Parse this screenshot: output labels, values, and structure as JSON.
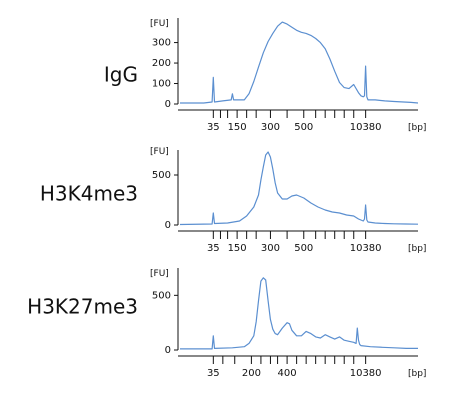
{
  "chart_data": [
    {
      "type": "line",
      "title": "IgG",
      "ylabel": "[FU]",
      "xlabel": "[bp]",
      "ylim": [
        0,
        420
      ],
      "yticks": [
        0,
        100,
        200,
        300
      ],
      "xlim": [
        0,
        100
      ],
      "x_tick_labels": [
        {
          "label": "35",
          "x": 14
        },
        {
          "label": "150",
          "x": 24
        },
        {
          "label": "300",
          "x": 38
        },
        {
          "label": "500",
          "x": 52
        },
        {
          "label": "10380",
          "x": 78
        }
      ],
      "x_minor_ticks": [
        14,
        17,
        20,
        24,
        28,
        32,
        38,
        45,
        52,
        57,
        61,
        65,
        69,
        73,
        78
      ],
      "series": [
        {
          "x": [
            0,
            10,
            13.5,
            14,
            14.5,
            18,
            21.5,
            22,
            22.5,
            27,
            29,
            31,
            33,
            35,
            37,
            39,
            41,
            42,
            43,
            44,
            45,
            47,
            49,
            51,
            53,
            55,
            57,
            59,
            61,
            63,
            65,
            67,
            69,
            71,
            73,
            75,
            76,
            77,
            77.5,
            78,
            78.5,
            79,
            82,
            86,
            90,
            94,
            97,
            100
          ],
          "y": [
            5,
            5,
            10,
            130,
            10,
            15,
            20,
            50,
            20,
            20,
            50,
            110,
            180,
            250,
            305,
            345,
            380,
            390,
            400,
            395,
            390,
            375,
            360,
            350,
            345,
            335,
            320,
            300,
            270,
            220,
            160,
            105,
            80,
            75,
            95,
            55,
            40,
            35,
            40,
            185,
            35,
            20,
            20,
            15,
            12,
            10,
            8,
            5
          ]
        }
      ]
    },
    {
      "type": "line",
      "title": "H3K4me3",
      "ylabel": "[FU]",
      "xlabel": "[bp]",
      "ylim": [
        0,
        750
      ],
      "yticks": [
        0,
        500
      ],
      "xlim": [
        0,
        100
      ],
      "x_tick_labels": [
        {
          "label": "35",
          "x": 14
        },
        {
          "label": "150",
          "x": 24
        },
        {
          "label": "300",
          "x": 38
        },
        {
          "label": "500",
          "x": 52
        },
        {
          "label": "10380",
          "x": 78
        }
      ],
      "x_minor_ticks": [
        14,
        17,
        20,
        24,
        28,
        32,
        38,
        45,
        52,
        57,
        61,
        65,
        69,
        73,
        78
      ],
      "series": [
        {
          "x": [
            0,
            13.5,
            14,
            14.5,
            20,
            25,
            28,
            31,
            33,
            34,
            35,
            36,
            37,
            38,
            39,
            40,
            41,
            43,
            45,
            47,
            49,
            52,
            55,
            58,
            61,
            64,
            67,
            70,
            73,
            75,
            77,
            77.5,
            78,
            78.5,
            79,
            82,
            86,
            90,
            95,
            100
          ],
          "y": [
            5,
            10,
            120,
            15,
            20,
            40,
            90,
            180,
            300,
            450,
            580,
            700,
            730,
            680,
            560,
            420,
            320,
            260,
            260,
            290,
            300,
            270,
            220,
            180,
            150,
            130,
            120,
            100,
            90,
            60,
            40,
            60,
            200,
            50,
            30,
            20,
            15,
            12,
            10,
            8
          ]
        }
      ]
    },
    {
      "type": "line",
      "title": "H3K27me3",
      "ylabel": "[FU]",
      "xlabel": "[bp]",
      "ylim": [
        0,
        750
      ],
      "yticks": [
        0,
        500
      ],
      "xlim": [
        0,
        100
      ],
      "x_tick_labels": [
        {
          "label": "35",
          "x": 14
        },
        {
          "label": "200",
          "x": 30
        },
        {
          "label": "400",
          "x": 45
        },
        {
          "label": "10380",
          "x": 78
        }
      ],
      "x_minor_ticks": [
        14,
        18,
        23,
        30,
        34,
        38,
        41,
        45,
        49,
        53,
        57,
        61,
        65,
        69,
        73,
        78
      ],
      "series": [
        {
          "x": [
            0,
            13.5,
            14,
            14.5,
            22,
            27,
            29,
            31,
            32,
            33,
            34,
            35,
            36,
            37,
            38,
            39,
            40,
            41,
            43,
            45,
            46,
            47,
            49,
            51,
            53,
            55,
            57,
            59,
            61,
            63,
            65,
            67,
            69,
            71,
            73,
            74,
            74.5,
            75,
            75.5,
            76,
            80,
            85,
            90,
            95,
            100
          ],
          "y": [
            10,
            10,
            130,
            15,
            20,
            30,
            60,
            130,
            260,
            450,
            630,
            660,
            640,
            450,
            280,
            190,
            150,
            140,
            200,
            250,
            240,
            180,
            130,
            130,
            170,
            150,
            120,
            110,
            140,
            120,
            100,
            120,
            90,
            80,
            70,
            60,
            200,
            90,
            50,
            40,
            30,
            25,
            20,
            15,
            15
          ]
        }
      ]
    }
  ]
}
